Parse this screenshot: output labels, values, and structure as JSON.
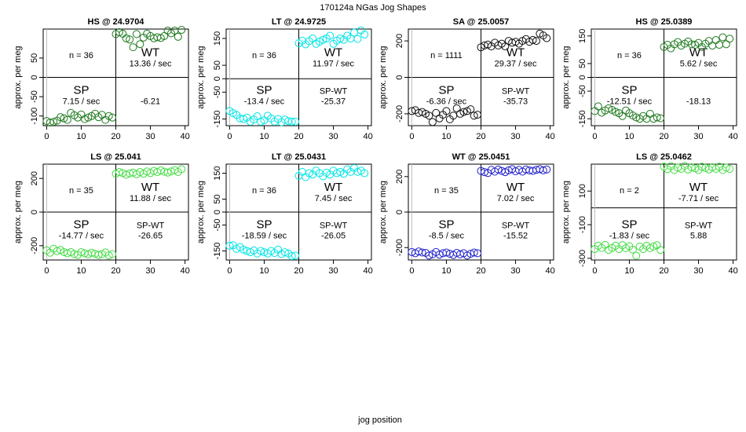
{
  "title": "170124a   NGas Jog Shapes",
  "xlabel": "jog position",
  "chart_data": [
    {
      "type": "scatter",
      "title": "HS @ 24.9704",
      "ylabel": "approx. per meg",
      "color": "#1e7a1e",
      "xlim": [
        -1,
        41
      ],
      "ylim": [
        -125,
        125
      ],
      "yticks": [
        -100,
        -50,
        0,
        50
      ],
      "xticks": [
        0,
        10,
        20,
        30,
        40
      ],
      "n_label": "n = 36",
      "sp_label": "SP",
      "sp_rate": "7.15 / sec",
      "wt_label": "WT",
      "wt_rate": "13.36 / sec",
      "diff_label": "",
      "diff_value": "-6.21",
      "sp_x": [
        0,
        1,
        2,
        3,
        4,
        5,
        6,
        7,
        8,
        9,
        10,
        11,
        12,
        13,
        14,
        15,
        16,
        17,
        18,
        19
      ],
      "sp_y": [
        -113,
        -117,
        -115,
        -112,
        -103,
        -106,
        -110,
        -92,
        -98,
        -104,
        -96,
        -108,
        -104,
        -100,
        -94,
        -103,
        -97,
        -110,
        -100,
        -104
      ],
      "wt_x": [
        20,
        21,
        22,
        23,
        24,
        25,
        26,
        27,
        28,
        29,
        30,
        31,
        32,
        33,
        34,
        35,
        36,
        37,
        38,
        39
      ],
      "wt_y": [
        112,
        117,
        113,
        101,
        98,
        78,
        112,
        86,
        103,
        113,
        107,
        101,
        104,
        102,
        107,
        121,
        114,
        121,
        105,
        123
      ]
    },
    {
      "type": "scatter",
      "title": "LT @ 24.9725",
      "ylabel": "approx. per meg",
      "color": "#00e5e5",
      "xlim": [
        -1,
        41
      ],
      "ylim": [
        -175,
        185
      ],
      "yticks": [
        -150,
        -50,
        0,
        50,
        150
      ],
      "xticks": [
        0,
        10,
        20,
        30,
        40
      ],
      "n_label": "n = 36",
      "sp_label": "SP",
      "sp_rate": "-13.4 / sec",
      "wt_label": "WT",
      "wt_rate": "11.97 / sec",
      "diff_label": "SP-WT",
      "diff_value": "-25.37",
      "sp_x": [
        0,
        1,
        2,
        3,
        4,
        5,
        6,
        7,
        8,
        9,
        10,
        11,
        12,
        13,
        14,
        15,
        16,
        17,
        18,
        19
      ],
      "sp_y": [
        -120,
        -128,
        -135,
        -148,
        -150,
        -145,
        -160,
        -152,
        -140,
        -160,
        -155,
        -138,
        -148,
        -160,
        -150,
        -162,
        -152,
        -158,
        -160,
        -160
      ],
      "wt_x": [
        20,
        21,
        22,
        23,
        24,
        25,
        26,
        27,
        28,
        29,
        30,
        31,
        32,
        33,
        34,
        35,
        36,
        37,
        38,
        39
      ],
      "wt_y": [
        132,
        142,
        128,
        140,
        150,
        130,
        138,
        145,
        150,
        160,
        130,
        142,
        150,
        145,
        160,
        150,
        172,
        148,
        180,
        165
      ]
    },
    {
      "type": "scatter",
      "title": "SA @ 25.0057",
      "ylabel": "approx. per meg",
      "color": "#111111",
      "xlim": [
        -1,
        41
      ],
      "ylim": [
        -265,
        265
      ],
      "yticks": [
        -200,
        0,
        200
      ],
      "xticks": [
        0,
        10,
        20,
        30,
        40
      ],
      "n_label": "n = 1111",
      "sp_label": "SP",
      "sp_rate": "-6.36 / sec",
      "wt_label": "WT",
      "wt_rate": "29.37 / sec",
      "diff_label": "SP-WT",
      "diff_value": "-35.73",
      "sp_x": [
        0,
        1,
        2,
        3,
        4,
        5,
        6,
        7,
        8,
        9,
        10,
        11,
        12,
        13,
        14,
        15,
        16,
        17,
        18,
        19
      ],
      "sp_y": [
        -185,
        -180,
        -195,
        -190,
        -200,
        -210,
        -245,
        -195,
        -225,
        -205,
        -185,
        -230,
        -210,
        -170,
        -200,
        -190,
        -185,
        -175,
        -210,
        -205
      ],
      "wt_x": [
        20,
        21,
        22,
        23,
        24,
        25,
        26,
        27,
        28,
        29,
        30,
        31,
        32,
        33,
        34,
        35,
        36,
        37,
        38,
        39
      ],
      "wt_y": [
        165,
        175,
        180,
        170,
        190,
        175,
        185,
        170,
        200,
        190,
        195,
        185,
        200,
        210,
        195,
        205,
        200,
        240,
        230,
        215
      ]
    },
    {
      "type": "scatter",
      "title": "HS @ 25.0389",
      "ylabel": "approx. per meg",
      "color": "#1e7a1e",
      "xlim": [
        -1,
        41
      ],
      "ylim": [
        -175,
        175
      ],
      "yticks": [
        -150,
        -50,
        0,
        50,
        150
      ],
      "xticks": [
        0,
        10,
        20,
        30,
        40
      ],
      "n_label": "n = 36",
      "sp_label": "SP",
      "sp_rate": "-12.51 / sec",
      "wt_label": "WT",
      "wt_rate": "5.62 / sec",
      "diff_label": "",
      "diff_value": "-18.13",
      "sp_x": [
        0,
        1,
        2,
        3,
        4,
        5,
        6,
        7,
        8,
        9,
        10,
        11,
        12,
        13,
        14,
        15,
        16,
        17,
        18,
        19
      ],
      "sp_y": [
        -122,
        -105,
        -128,
        -120,
        -112,
        -118,
        -125,
        -130,
        -140,
        -120,
        -130,
        -138,
        -145,
        -150,
        -140,
        -150,
        -132,
        -150,
        -145,
        -148
      ],
      "wt_x": [
        20,
        21,
        22,
        23,
        24,
        25,
        26,
        27,
        28,
        29,
        30,
        31,
        32,
        33,
        34,
        35,
        36,
        37,
        38,
        39
      ],
      "wt_y": [
        110,
        118,
        105,
        120,
        128,
        115,
        122,
        130,
        120,
        118,
        125,
        110,
        122,
        132,
        115,
        135,
        118,
        145,
        120,
        140
      ]
    },
    {
      "type": "scatter",
      "title": "LS @ 25.041",
      "ylabel": "approx. per meg",
      "color": "#44dd44",
      "xlim": [
        -1,
        41
      ],
      "ylim": [
        -285,
        285
      ],
      "yticks": [
        -200,
        0,
        200
      ],
      "xticks": [
        0,
        10,
        20,
        30,
        40
      ],
      "n_label": "n = 35",
      "sp_label": "SP",
      "sp_rate": "-14.77 / sec",
      "wt_label": "WT",
      "wt_rate": "11.88 / sec",
      "diff_label": "SP-WT",
      "diff_value": "-26.65",
      "sp_x": [
        0,
        1,
        2,
        3,
        4,
        5,
        6,
        7,
        8,
        9,
        10,
        11,
        12,
        13,
        14,
        15,
        16,
        17,
        18,
        19
      ],
      "sp_y": [
        -228,
        -242,
        -218,
        -232,
        -225,
        -238,
        -245,
        -238,
        -250,
        -255,
        -238,
        -245,
        -252,
        -242,
        -248,
        -255,
        -250,
        -240,
        -258,
        -250
      ],
      "wt_x": [
        20,
        21,
        22,
        23,
        24,
        25,
        26,
        27,
        28,
        29,
        30,
        31,
        32,
        33,
        34,
        35,
        36,
        37,
        38,
        39
      ],
      "wt_y": [
        228,
        238,
        232,
        222,
        230,
        235,
        225,
        238,
        228,
        242,
        232,
        245,
        238,
        248,
        240,
        235,
        242,
        250,
        238,
        255
      ]
    },
    {
      "type": "scatter",
      "title": "LT @ 25.0431",
      "ylabel": "approx. per meg",
      "color": "#00e5e5",
      "xlim": [
        -1,
        41
      ],
      "ylim": [
        -185,
        185
      ],
      "yticks": [
        -150,
        -50,
        0,
        50,
        150
      ],
      "xticks": [
        0,
        10,
        20,
        30,
        40
      ],
      "n_label": "n = 36",
      "sp_label": "SP",
      "sp_rate": "-18.59 / sec",
      "wt_label": "WT",
      "wt_rate": "7.45 / sec",
      "diff_label": "SP-WT",
      "diff_value": "-26.05",
      "sp_x": [
        0,
        1,
        2,
        3,
        4,
        5,
        6,
        7,
        8,
        9,
        10,
        11,
        12,
        13,
        14,
        15,
        16,
        17,
        18,
        19
      ],
      "sp_y": [
        -130,
        -128,
        -142,
        -135,
        -145,
        -150,
        -155,
        -148,
        -160,
        -150,
        -155,
        -160,
        -150,
        -158,
        -145,
        -162,
        -155,
        -160,
        -170,
        -168
      ],
      "wt_x": [
        20,
        21,
        22,
        23,
        24,
        25,
        26,
        27,
        28,
        29,
        30,
        31,
        32,
        33,
        34,
        35,
        36,
        37,
        38,
        39
      ],
      "wt_y": [
        140,
        155,
        135,
        150,
        145,
        160,
        150,
        138,
        152,
        145,
        160,
        150,
        155,
        148,
        165,
        155,
        170,
        155,
        160,
        150
      ]
    },
    {
      "type": "scatter",
      "title": "WT @ 25.0451",
      "ylabel": "approx. per meg",
      "color": "#2222cc",
      "xlim": [
        -1,
        41
      ],
      "ylim": [
        -270,
        270
      ],
      "yticks": [
        -200,
        0,
        200
      ],
      "xticks": [
        0,
        10,
        20,
        30,
        40
      ],
      "n_label": "n = 35",
      "sp_label": "SP",
      "sp_rate": "-8.5 / sec",
      "wt_label": "WT",
      "wt_rate": "7.02 / sec",
      "diff_label": "SP-WT",
      "diff_value": "-15.52",
      "sp_x": [
        0,
        1,
        2,
        3,
        4,
        5,
        6,
        7,
        8,
        9,
        10,
        11,
        12,
        13,
        14,
        15,
        16,
        17,
        18,
        19
      ],
      "sp_y": [
        -225,
        -232,
        -222,
        -228,
        -230,
        -245,
        -238,
        -225,
        -240,
        -232,
        -228,
        -235,
        -242,
        -230,
        -238,
        -232,
        -245,
        -235,
        -228,
        -232
      ],
      "wt_x": [
        20,
        21,
        22,
        23,
        24,
        25,
        26,
        27,
        28,
        29,
        30,
        31,
        32,
        33,
        34,
        35,
        36,
        37,
        38,
        39
      ],
      "wt_y": [
        232,
        225,
        220,
        238,
        228,
        240,
        232,
        225,
        235,
        242,
        230,
        238,
        228,
        240,
        235,
        232,
        238,
        242,
        235,
        240
      ]
    },
    {
      "type": "scatter",
      "title": "LS @ 25.0462",
      "ylabel": "approx. per meg",
      "color": "#44dd44",
      "xlim": [
        -1,
        41
      ],
      "ylim": [
        -310,
        260
      ],
      "yticks": [
        -300,
        -100,
        100
      ],
      "xticks": [
        0,
        10,
        20,
        30,
        40
      ],
      "n_label": "n = 2",
      "sp_label": "SP",
      "sp_rate": "-1.83 / sec",
      "wt_label": "WT",
      "wt_rate": "-7.71 / sec",
      "diff_label": "SP-WT",
      "diff_value": "5.88",
      "sp_x": [
        0,
        1,
        2,
        3,
        4,
        5,
        6,
        7,
        8,
        9,
        10,
        11,
        12,
        13,
        14,
        15,
        16,
        17,
        18,
        19
      ],
      "sp_y": [
        -245,
        -225,
        -238,
        -220,
        -250,
        -238,
        -225,
        -245,
        -222,
        -240,
        -228,
        -248,
        -285,
        -230,
        -245,
        -225,
        -240,
        -230,
        -222,
        -250
      ],
      "wt_x": [
        20,
        21,
        22,
        23,
        24,
        25,
        26,
        27,
        28,
        29,
        30,
        31,
        32,
        33,
        34,
        35,
        36,
        37,
        38,
        39
      ],
      "wt_y": [
        245,
        230,
        248,
        225,
        240,
        232,
        250,
        228,
        242,
        235,
        225,
        245,
        238,
        228,
        242,
        232,
        245,
        225,
        240,
        232
      ]
    }
  ]
}
